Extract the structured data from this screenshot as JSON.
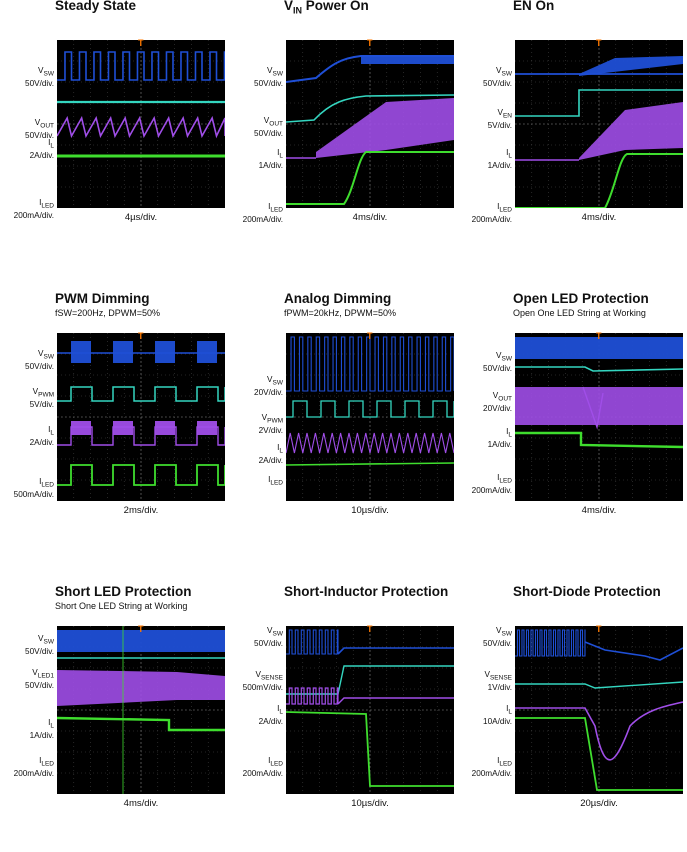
{
  "chart_data": [
    {
      "type": "line",
      "title": "Steady State",
      "subtitle": "",
      "timebase": "4µs/div.",
      "colors": {
        "sw": "#1f4fd6",
        "vout": "#34d6c0",
        "il": "#a04ee8",
        "iled": "#3fdd2e"
      },
      "traces": [
        {
          "name": "V_SW",
          "sub": "SW",
          "scale": "50V/div."
        },
        {
          "name": "V_OUT",
          "sub": "OUT",
          "scale": "50V/div."
        },
        {
          "name": "I_L",
          "sub": "L",
          "scale": "2A/div."
        },
        {
          "name": "I_LED",
          "sub": "LED",
          "scale": "200mA/div."
        }
      ]
    },
    {
      "type": "line",
      "title": "VIN Power On",
      "title_main": "V",
      "title_sub": "IN",
      "title_rest": " Power On",
      "subtitle": "",
      "timebase": "4ms/div.",
      "traces": [
        {
          "name": "V_SW",
          "sub": "SW",
          "scale": "50V/div."
        },
        {
          "name": "V_OUT",
          "sub": "OUT",
          "scale": "50V/div."
        },
        {
          "name": "I_L",
          "sub": "L",
          "scale": "1A/div."
        },
        {
          "name": "I_LED",
          "sub": "LED",
          "scale": "200mA/div."
        }
      ]
    },
    {
      "type": "line",
      "title": "EN On",
      "subtitle": "",
      "timebase": "4ms/div.",
      "traces": [
        {
          "name": "V_SW",
          "sub": "SW",
          "scale": "50V/div."
        },
        {
          "name": "V_EN",
          "sub": "EN",
          "scale": "5V/div."
        },
        {
          "name": "I_L",
          "sub": "L",
          "scale": "1A/div."
        },
        {
          "name": "I_LED",
          "sub": "LED",
          "scale": "200mA/div."
        }
      ]
    },
    {
      "type": "line",
      "title": "PWM Dimming",
      "subtitle": "fSW=200Hz, DPWM=50%",
      "timebase": "2ms/div.",
      "traces": [
        {
          "name": "V_SW",
          "sub": "SW",
          "scale": "50V/div."
        },
        {
          "name": "V_PWM",
          "sub": "PWM",
          "scale": "5V/div."
        },
        {
          "name": "I_L",
          "sub": "L",
          "scale": "2A/div."
        },
        {
          "name": "I_LED",
          "sub": "LED",
          "scale": "500mA/div."
        }
      ]
    },
    {
      "type": "line",
      "title": "Analog Dimming",
      "subtitle": "fPWM=20kHz, DPWM=50%",
      "timebase": "10µs/div.",
      "traces": [
        {
          "name": "V_SW",
          "sub": "SW",
          "scale": "20V/div."
        },
        {
          "name": "V_PWM",
          "sub": "PWM",
          "scale": "2V/div."
        },
        {
          "name": "I_L",
          "sub": "L",
          "scale": "2A/div."
        },
        {
          "name": "I_LED",
          "sub": "LED",
          "scale": ""
        }
      ]
    },
    {
      "type": "line",
      "title": "Open LED Protection",
      "subtitle": "Open One LED String at Working",
      "timebase": "4ms/div.",
      "traces": [
        {
          "name": "V_SW",
          "sub": "SW",
          "scale": "50V/div."
        },
        {
          "name": "V_OUT",
          "sub": "OUT",
          "scale": "20V/div."
        },
        {
          "name": "I_L",
          "sub": "L",
          "scale": "1A/div."
        },
        {
          "name": "I_LED",
          "sub": "LED",
          "scale": "200mA/div."
        }
      ]
    },
    {
      "type": "line",
      "title": "Short LED Protection",
      "subtitle": "Short One LED String at Working",
      "timebase": "4ms/div.",
      "traces": [
        {
          "name": "V_SW",
          "sub": "SW",
          "scale": "50V/div."
        },
        {
          "name": "V_LED1",
          "sub": "LED1",
          "scale": "50V/div."
        },
        {
          "name": "I_L",
          "sub": "L",
          "scale": "1A/div."
        },
        {
          "name": "I_LED",
          "sub": "LED",
          "scale": "200mA/div."
        }
      ]
    },
    {
      "type": "line",
      "title": "Short-Inductor Protection",
      "subtitle": "",
      "timebase": "10µs/div.",
      "traces": [
        {
          "name": "V_SW",
          "sub": "SW",
          "scale": "50V/div."
        },
        {
          "name": "V_SENSE",
          "sub": "SENSE",
          "scale": "500mV/div."
        },
        {
          "name": "I_L",
          "sub": "L",
          "scale": "2A/div."
        },
        {
          "name": "I_LED",
          "sub": "LED",
          "scale": "200mA/div."
        }
      ]
    },
    {
      "type": "line",
      "title": "Short-Diode Protection",
      "subtitle": "",
      "timebase": "20µs/div.",
      "traces": [
        {
          "name": "V_SW",
          "sub": "SW",
          "scale": "50V/div."
        },
        {
          "name": "V_SENSE",
          "sub": "SENSE",
          "scale": "1V/div."
        },
        {
          "name": "I_L",
          "sub": "L",
          "scale": "10A/div."
        },
        {
          "name": "I_LED",
          "sub": "LED",
          "scale": "200mA/div."
        }
      ]
    }
  ]
}
